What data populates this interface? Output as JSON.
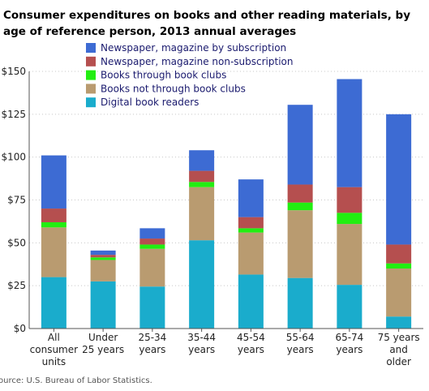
{
  "title": "Consumer expenditures on books and other reading materials, by age of reference person, 2013 annual averages",
  "source": "ource: U.S. Bureau of Labor Statistics.",
  "chart_data": {
    "type": "bar",
    "stacked": true,
    "title": "Consumer expenditures on books and other reading materials, by age of reference person, 2013 annual averages",
    "categories": [
      [
        "All",
        "consumer",
        "units"
      ],
      [
        "Under",
        "25 years"
      ],
      [
        "25-34",
        "years"
      ],
      [
        "35-44",
        "years"
      ],
      [
        "45-54",
        "years"
      ],
      [
        "55-64",
        "years"
      ],
      [
        "65-74",
        "years"
      ],
      [
        "75 years",
        "and",
        "older"
      ]
    ],
    "ylim": [
      0,
      150
    ],
    "yticks": [
      0,
      25,
      50,
      75,
      100,
      125,
      150
    ],
    "ytick_labels": [
      "$0",
      "$25",
      "$50",
      "$75",
      "$100",
      "$125",
      "$150"
    ],
    "grid": true,
    "legend_position": "top-center",
    "series": [
      {
        "name": "Digital book readers",
        "color": "#1aaccc",
        "values": [
          30,
          27.5,
          24.5,
          51.5,
          31.5,
          29.5,
          25.5,
          7
        ]
      },
      {
        "name": "Books not through book clubs",
        "color": "#b99b70",
        "values": [
          29,
          12.5,
          22,
          31,
          24.5,
          39.5,
          35.5,
          28
        ]
      },
      {
        "name": "Books through book clubs",
        "color": "#22ee11",
        "values": [
          3,
          1.5,
          2.5,
          3,
          2.5,
          4.5,
          6.5,
          3
        ]
      },
      {
        "name": "Newspaper, magazine non-subscription",
        "color": "#b54f4f",
        "values": [
          8,
          1.5,
          3.5,
          6.5,
          6.5,
          10.5,
          15,
          11
        ]
      },
      {
        "name": "Newspaper, magazine by subscription",
        "color": "#3d6bd3",
        "values": [
          31,
          2.5,
          6,
          12,
          22,
          46.5,
          63,
          76
        ]
      }
    ]
  }
}
